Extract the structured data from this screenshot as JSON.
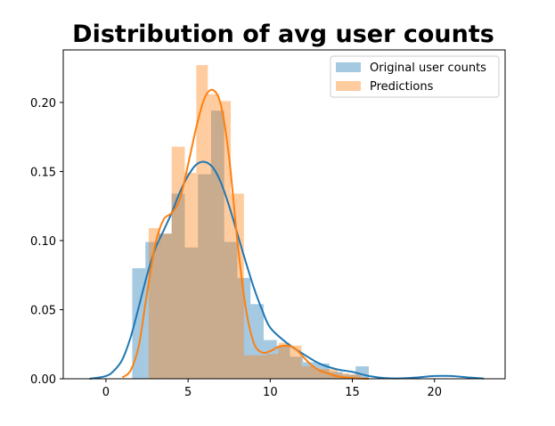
{
  "chart_data": {
    "type": "bar",
    "title": "Distribution of avg user counts",
    "xlabel": "",
    "ylabel": "",
    "xlim": [
      -2.6,
      24.3
    ],
    "ylim": [
      0,
      0.238
    ],
    "xticks": [
      0,
      5,
      10,
      15,
      20
    ],
    "yticks": [
      0.0,
      0.05,
      0.1,
      0.15,
      0.2
    ],
    "ytick_labels": [
      "0.00",
      "0.05",
      "0.10",
      "0.15",
      "0.20"
    ],
    "legend_position": "top-right",
    "series": [
      {
        "name": "Original user counts",
        "kind": "histogram",
        "color": "#1f77b4",
        "bar_opacity": 0.4,
        "bins": [
          {
            "x0": 1.6,
            "x1": 2.4,
            "y": 0.08
          },
          {
            "x0": 2.4,
            "x1": 3.2,
            "y": 0.099
          },
          {
            "x0": 3.2,
            "x1": 4.0,
            "y": 0.105
          },
          {
            "x0": 4.0,
            "x1": 4.8,
            "y": 0.134
          },
          {
            "x0": 4.8,
            "x1": 5.6,
            "y": 0.095
          },
          {
            "x0": 5.6,
            "x1": 6.4,
            "y": 0.148
          },
          {
            "x0": 6.4,
            "x1": 7.2,
            "y": 0.194
          },
          {
            "x0": 7.2,
            "x1": 8.0,
            "y": 0.099
          },
          {
            "x0": 8.0,
            "x1": 8.8,
            "y": 0.073
          },
          {
            "x0": 8.8,
            "x1": 9.6,
            "y": 0.054
          },
          {
            "x0": 9.6,
            "x1": 10.4,
            "y": 0.028
          },
          {
            "x0": 10.4,
            "x1": 11.2,
            "y": 0.024
          },
          {
            "x0": 11.2,
            "x1": 12.0,
            "y": 0.016
          },
          {
            "x0": 12.0,
            "x1": 12.8,
            "y": 0.012
          },
          {
            "x0": 12.8,
            "x1": 13.6,
            "y": 0.011
          },
          {
            "x0": 13.6,
            "x1": 14.4,
            "y": 0.005
          },
          {
            "x0": 14.4,
            "x1": 15.2,
            "y": 0.003
          },
          {
            "x0": 15.2,
            "x1": 16.0,
            "y": 0.009
          }
        ],
        "kde": {
          "x": [
            -1.0,
            0.0,
            0.5,
            1.0,
            1.5,
            2.0,
            2.5,
            3.0,
            3.5,
            4.0,
            4.5,
            5.0,
            5.5,
            6.0,
            6.5,
            7.0,
            7.5,
            8.0,
            8.5,
            9.0,
            9.5,
            10.0,
            11.0,
            12.0,
            13.0,
            14.0,
            15.0,
            16.0,
            17.0,
            18.0,
            19.0,
            20.0,
            21.0,
            22.0,
            23.0
          ],
          "y": [
            0.0,
            0.002,
            0.006,
            0.014,
            0.03,
            0.052,
            0.075,
            0.094,
            0.107,
            0.12,
            0.135,
            0.147,
            0.155,
            0.157,
            0.153,
            0.142,
            0.125,
            0.105,
            0.085,
            0.066,
            0.05,
            0.037,
            0.026,
            0.018,
            0.011,
            0.007,
            0.005,
            0.002,
            0.0005,
            0.0003,
            0.001,
            0.002,
            0.002,
            0.001,
            0.0002
          ]
        }
      },
      {
        "name": "Predictions",
        "kind": "histogram",
        "color": "#ff7f0e",
        "bar_opacity": 0.4,
        "bins": [
          {
            "x0": 2.6,
            "x1": 3.3,
            "y": 0.109
          },
          {
            "x0": 3.3,
            "x1": 4.0,
            "y": 0.105
          },
          {
            "x0": 4.0,
            "x1": 4.8,
            "y": 0.168
          },
          {
            "x0": 4.8,
            "x1": 5.5,
            "y": 0.149
          },
          {
            "x0": 5.5,
            "x1": 6.2,
            "y": 0.227
          },
          {
            "x0": 6.2,
            "x1": 6.9,
            "y": 0.206
          },
          {
            "x0": 6.9,
            "x1": 7.6,
            "y": 0.201
          },
          {
            "x0": 7.6,
            "x1": 8.4,
            "y": 0.134
          },
          {
            "x0": 8.4,
            "x1": 9.1,
            "y": 0.017
          },
          {
            "x0": 9.1,
            "x1": 9.8,
            "y": 0.017
          },
          {
            "x0": 9.8,
            "x1": 10.5,
            "y": 0.018
          },
          {
            "x0": 10.5,
            "x1": 11.2,
            "y": 0.026
          },
          {
            "x0": 11.2,
            "x1": 11.9,
            "y": 0.024
          },
          {
            "x0": 11.9,
            "x1": 12.7,
            "y": 0.009
          },
          {
            "x0": 12.7,
            "x1": 13.4,
            "y": 0.007
          },
          {
            "x0": 13.4,
            "x1": 14.1,
            "y": 0.007
          },
          {
            "x0": 14.1,
            "x1": 14.8,
            "y": 0.004
          },
          {
            "x0": 14.8,
            "x1": 15.5,
            "y": 0.003
          }
        ],
        "kde": {
          "x": [
            1.0,
            1.5,
            2.0,
            2.5,
            3.0,
            3.5,
            4.0,
            4.5,
            5.0,
            5.5,
            6.0,
            6.5,
            7.0,
            7.5,
            8.0,
            8.5,
            9.0,
            9.5,
            10.0,
            10.5,
            11.0,
            11.5,
            12.0,
            12.5,
            13.0,
            13.5,
            14.0,
            15.0,
            16.0
          ],
          "y": [
            0.001,
            0.006,
            0.024,
            0.062,
            0.097,
            0.115,
            0.12,
            0.13,
            0.155,
            0.182,
            0.203,
            0.209,
            0.198,
            0.16,
            0.1,
            0.052,
            0.026,
            0.019,
            0.02,
            0.023,
            0.024,
            0.022,
            0.016,
            0.01,
            0.006,
            0.004,
            0.002,
            0.0005,
            0.0
          ]
        }
      }
    ]
  }
}
